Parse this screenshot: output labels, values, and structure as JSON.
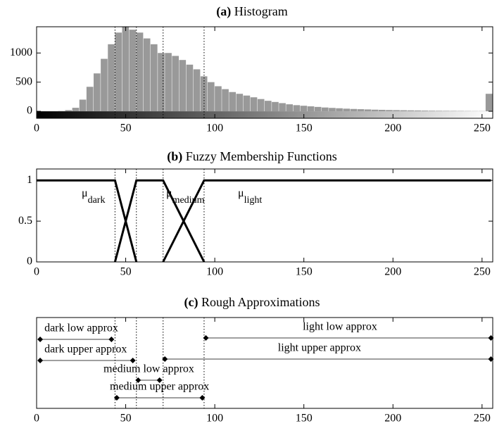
{
  "chart_data": [
    {
      "type": "histogram",
      "label": "(a)",
      "title": "Histogram",
      "bins": [
        0,
        4,
        8,
        12,
        16,
        20,
        24,
        28,
        32,
        36,
        40,
        44,
        48,
        52,
        56,
        60,
        64,
        68,
        72,
        76,
        80,
        84,
        88,
        92,
        96,
        100,
        104,
        108,
        112,
        116,
        120,
        124,
        128,
        132,
        136,
        140,
        144,
        148,
        152,
        156,
        160,
        164,
        168,
        172,
        176,
        180,
        184,
        188,
        192,
        196,
        200,
        204,
        208,
        212,
        216,
        220,
        224,
        228,
        232,
        236,
        240,
        244,
        248,
        252,
        256
      ],
      "counts": [
        0,
        0,
        0,
        5,
        20,
        60,
        200,
        420,
        650,
        900,
        1150,
        1350,
        1450,
        1400,
        1350,
        1250,
        1150,
        1000,
        1000,
        950,
        880,
        800,
        720,
        600,
        500,
        430,
        380,
        330,
        300,
        270,
        240,
        210,
        180,
        160,
        140,
        120,
        105,
        95,
        85,
        75,
        65,
        58,
        52,
        45,
        40,
        36,
        32,
        28,
        25,
        22,
        20,
        18,
        16,
        14,
        12,
        10,
        9,
        8,
        7,
        6,
        5,
        4,
        4,
        300
      ],
      "color": "#999999",
      "thresholds": [
        44,
        56,
        71,
        94
      ],
      "xlim": [
        0,
        256
      ],
      "xticks": [
        0,
        50,
        100,
        150,
        200,
        250
      ],
      "ylim": [
        -120,
        1450
      ],
      "yticks": [
        0,
        500,
        1000
      ]
    },
    {
      "type": "line",
      "label": "(b)",
      "title": "Fuzzy Membership Functions",
      "symbol": "μ",
      "series": [
        {
          "name": "dark",
          "color": "#000000",
          "x": [
            0,
            44,
            56
          ],
          "values": [
            1,
            1,
            0
          ]
        },
        {
          "name": "medium",
          "color": "#000000",
          "x": [
            44,
            56,
            71,
            94
          ],
          "values": [
            0,
            1,
            1,
            0
          ]
        },
        {
          "name": "light",
          "color": "#000000",
          "x": [
            71,
            94,
            255
          ],
          "values": [
            0,
            1,
            1
          ]
        }
      ],
      "thresholds": [
        44,
        56,
        71,
        94
      ],
      "xlim": [
        0,
        256
      ],
      "xticks": [
        0,
        50,
        100,
        150,
        200,
        250
      ],
      "ylim": [
        0,
        1.14
      ],
      "yticks": [
        0,
        0.5,
        1
      ]
    },
    {
      "type": "interval",
      "label": "(c)",
      "title": "Rough Approximations",
      "series": [
        {
          "name": "dark low approx",
          "values": [
            2,
            42
          ]
        },
        {
          "name": "dark upper approx",
          "values": [
            2,
            54
          ]
        },
        {
          "name": "medium low approx",
          "values": [
            57,
            69
          ]
        },
        {
          "name": "medium upper approx",
          "values": [
            45,
            93
          ]
        },
        {
          "name": "light low approx",
          "values": [
            95,
            255
          ]
        },
        {
          "name": "light upper approx",
          "values": [
            72,
            255
          ]
        }
      ],
      "thresholds": [
        44,
        56,
        71,
        94
      ],
      "xlim": [
        0,
        256
      ],
      "xticks": [
        0,
        50,
        100,
        150,
        200,
        250
      ]
    }
  ]
}
